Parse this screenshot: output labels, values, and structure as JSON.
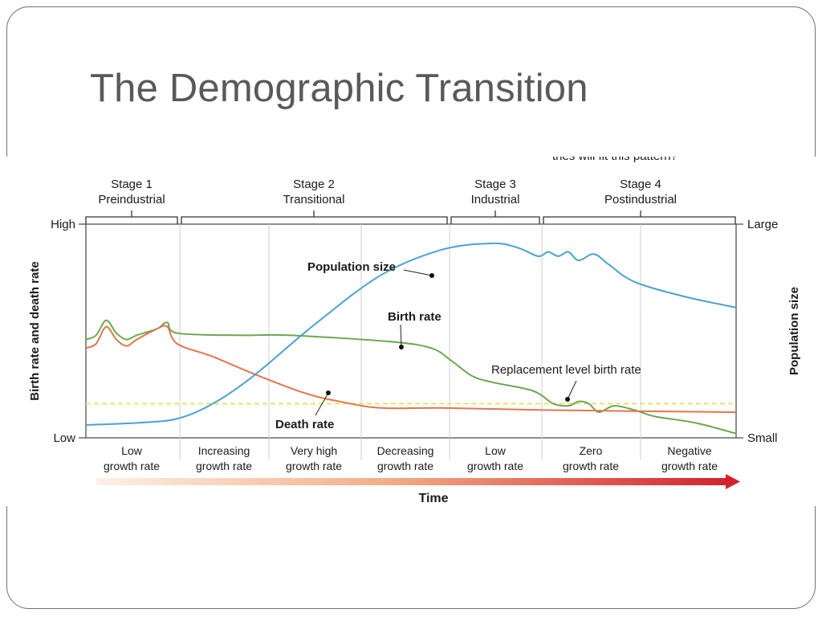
{
  "slide": {
    "title": "The Demographic Transition",
    "cutoff_text": "tries will fit this pattern?"
  },
  "chart_data": {
    "type": "line",
    "stages": [
      {
        "name": "Stage 1",
        "label": "Preindustrial"
      },
      {
        "name": "Stage 2",
        "label": "Transitional"
      },
      {
        "name": "Stage 3",
        "label": "Industrial"
      },
      {
        "name": "Stage 4",
        "label": "Postindustrial"
      }
    ],
    "growth_labels": [
      [
        "Low",
        "growth rate"
      ],
      [
        "Increasing",
        "growth rate"
      ],
      [
        "Very high",
        "growth rate"
      ],
      [
        "Decreasing",
        "growth rate"
      ],
      [
        "Low",
        "growth rate"
      ],
      [
        "Zero",
        "growth rate"
      ],
      [
        "Negative",
        "growth rate"
      ]
    ],
    "y_left": {
      "label": "Birth rate and death rate",
      "high": "High",
      "low": "Low"
    },
    "y_right": {
      "label": "Population size",
      "high": "Large",
      "low": "Small"
    },
    "xlabel": "Time",
    "annotations": {
      "population": "Population size",
      "birth": "Birth rate",
      "death": "Death rate",
      "replacement": "Replacement level birth rate"
    },
    "colors": {
      "population": "#4aa3cf",
      "birth": "#6aa84f",
      "death": "#e0774e",
      "replacement": "#e8e06a",
      "arrow_end": "#d3222e"
    },
    "series": [
      {
        "key": "birth",
        "values": [
          [
            0,
            0.46
          ],
          [
            2,
            0.48
          ],
          [
            4,
            0.55
          ],
          [
            6,
            0.49
          ],
          [
            8,
            0.46
          ],
          [
            10,
            0.48
          ],
          [
            14,
            0.51
          ],
          [
            16,
            0.54
          ],
          [
            18,
            0.49
          ],
          [
            30,
            0.48
          ],
          [
            40,
            0.48
          ],
          [
            60,
            0.45
          ],
          [
            68,
            0.42
          ],
          [
            72,
            0.36
          ],
          [
            76,
            0.29
          ],
          [
            80,
            0.26
          ],
          [
            88,
            0.22
          ],
          [
            92,
            0.16
          ],
          [
            95,
            0.15
          ],
          [
            97,
            0.17
          ],
          [
            99,
            0.16
          ],
          [
            101,
            0.12
          ],
          [
            104,
            0.15
          ],
          [
            108,
            0.13
          ],
          [
            112,
            0.1
          ],
          [
            120,
            0.07
          ],
          [
            128,
            0.02
          ]
        ]
      },
      {
        "key": "death",
        "values": [
          [
            0,
            0.42
          ],
          [
            2,
            0.44
          ],
          [
            4,
            0.52
          ],
          [
            6,
            0.46
          ],
          [
            8,
            0.43
          ],
          [
            10,
            0.46
          ],
          [
            14,
            0.51
          ],
          [
            16,
            0.52
          ],
          [
            18,
            0.44
          ],
          [
            25,
            0.38
          ],
          [
            33,
            0.3
          ],
          [
            43,
            0.21
          ],
          [
            50,
            0.17
          ],
          [
            58,
            0.14
          ],
          [
            70,
            0.14
          ],
          [
            90,
            0.13
          ],
          [
            128,
            0.12
          ]
        ]
      },
      {
        "key": "population",
        "values": [
          [
            0,
            0.06
          ],
          [
            10,
            0.07
          ],
          [
            18,
            0.09
          ],
          [
            25,
            0.16
          ],
          [
            33,
            0.29
          ],
          [
            45,
            0.53
          ],
          [
            58,
            0.76
          ],
          [
            70,
            0.88
          ],
          [
            80,
            0.91
          ],
          [
            85,
            0.89
          ],
          [
            89,
            0.85
          ],
          [
            91,
            0.87
          ],
          [
            93,
            0.85
          ],
          [
            95,
            0.87
          ],
          [
            97,
            0.83
          ],
          [
            100,
            0.86
          ],
          [
            103,
            0.81
          ],
          [
            108,
            0.73
          ],
          [
            118,
            0.66
          ],
          [
            128,
            0.61
          ]
        ]
      }
    ],
    "replacement_level": 0.16,
    "x_range": [
      0,
      128
    ],
    "y_range": [
      0,
      1
    ]
  }
}
